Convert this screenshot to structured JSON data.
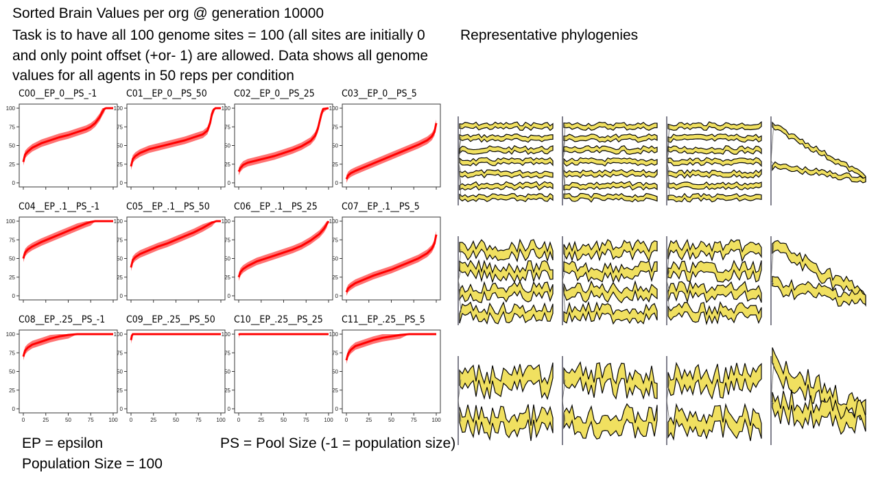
{
  "title_lines": [
    "Sorted Brain Values per org @ generation 10000",
    "Task is to have all 100 genome sites = 100 (all sites are initially 0",
    "and only point offset (+or- 1) are allowed.  Data shows all genome",
    "values for all agents in 50 reps per condition"
  ],
  "phylogeny_title": "Representative phylogenies",
  "notes": {
    "epsilon": "EP = epsilon",
    "population": "Population Size = 100",
    "pool": "PS = Pool Size (-1 = population size)"
  },
  "colors": {
    "series": "#ff0000",
    "axis": "#333333",
    "phylo_fill": "#f0e060",
    "phylo_edge": "#000000"
  },
  "chart_data": [
    {
      "type": "line",
      "title": "C00__EP_0__PS_-1",
      "xlabel": "",
      "ylabel": "",
      "xlim": [
        0,
        100
      ],
      "ylim": [
        0,
        100
      ],
      "grid": false,
      "xticks": [
        0,
        25,
        50,
        75,
        100
      ],
      "yticks": [
        0,
        25,
        50,
        75,
        100
      ],
      "show_xticklabels": false,
      "series": [
        {
          "x": [
            0,
            2,
            5,
            10,
            20,
            30,
            40,
            50,
            60,
            70,
            75,
            80,
            85,
            88,
            90,
            92,
            100
          ],
          "y": [
            28,
            38,
            42,
            47,
            53,
            57,
            61,
            64,
            68,
            72,
            75,
            80,
            88,
            95,
            99,
            100,
            100
          ]
        }
      ]
    },
    {
      "type": "line",
      "title": "C01__EP_0__PS_50",
      "xlabel": "",
      "ylabel": "",
      "xlim": [
        0,
        100
      ],
      "ylim": [
        0,
        100
      ],
      "grid": false,
      "xticks": [
        0,
        25,
        50,
        75,
        100
      ],
      "yticks": [
        0,
        25,
        50,
        75,
        100
      ],
      "show_xticklabels": false,
      "series": [
        {
          "x": [
            0,
            2,
            5,
            10,
            20,
            30,
            40,
            50,
            60,
            70,
            80,
            85,
            88,
            90,
            92,
            94,
            100
          ],
          "y": [
            22,
            32,
            36,
            40,
            45,
            48,
            51,
            54,
            57,
            61,
            65,
            70,
            80,
            92,
            98,
            100,
            100
          ]
        }
      ]
    },
    {
      "type": "line",
      "title": "C02__EP_0__PS_25",
      "xlabel": "",
      "ylabel": "",
      "xlim": [
        0,
        100
      ],
      "ylim": [
        0,
        100
      ],
      "grid": false,
      "xticks": [
        0,
        25,
        50,
        75,
        100
      ],
      "yticks": [
        0,
        25,
        50,
        75,
        100
      ],
      "show_xticklabels": false,
      "series": [
        {
          "x": [
            0,
            2,
            5,
            10,
            20,
            30,
            40,
            50,
            60,
            70,
            80,
            85,
            88,
            90,
            92,
            94,
            100
          ],
          "y": [
            15,
            20,
            24,
            27,
            30,
            33,
            36,
            40,
            44,
            49,
            56,
            63,
            72,
            82,
            92,
            99,
            100
          ]
        }
      ]
    },
    {
      "type": "line",
      "title": "C03__EP_0__PS_5",
      "xlabel": "",
      "ylabel": "",
      "xlim": [
        0,
        100
      ],
      "ylim": [
        0,
        100
      ],
      "grid": false,
      "xticks": [
        0,
        25,
        50,
        75,
        100
      ],
      "yticks": [
        0,
        25,
        50,
        75,
        100
      ],
      "show_xticklabels": false,
      "series": [
        {
          "x": [
            0,
            2,
            5,
            10,
            20,
            30,
            40,
            50,
            60,
            70,
            80,
            90,
            95,
            98,
            100
          ],
          "y": [
            5,
            10,
            13,
            16,
            21,
            26,
            31,
            36,
            41,
            46,
            51,
            57,
            62,
            68,
            80
          ]
        }
      ]
    },
    {
      "type": "line",
      "title": "C04__EP_.1__PS_-1",
      "xlabel": "",
      "ylabel": "",
      "xlim": [
        0,
        100
      ],
      "ylim": [
        0,
        100
      ],
      "grid": false,
      "xticks": [
        0,
        25,
        50,
        75,
        100
      ],
      "yticks": [
        0,
        25,
        50,
        75,
        100
      ],
      "show_xticklabels": false,
      "series": [
        {
          "x": [
            0,
            2,
            5,
            10,
            20,
            30,
            40,
            50,
            60,
            70,
            75,
            80,
            100
          ],
          "y": [
            50,
            58,
            62,
            66,
            72,
            77,
            82,
            87,
            92,
            97,
            99,
            100,
            100
          ]
        }
      ]
    },
    {
      "type": "line",
      "title": "C05__EP_.1__PS_50",
      "xlabel": "",
      "ylabel": "",
      "xlim": [
        0,
        100
      ],
      "ylim": [
        0,
        100
      ],
      "grid": false,
      "xticks": [
        0,
        25,
        50,
        75,
        100
      ],
      "yticks": [
        0,
        25,
        50,
        75,
        100
      ],
      "show_xticklabels": false,
      "series": [
        {
          "x": [
            0,
            2,
            5,
            10,
            20,
            30,
            40,
            50,
            60,
            70,
            80,
            90,
            95,
            100
          ],
          "y": [
            38,
            48,
            52,
            56,
            61,
            66,
            70,
            75,
            80,
            85,
            91,
            98,
            100,
            100
          ]
        }
      ]
    },
    {
      "type": "line",
      "title": "C06__EP_.1__PS_25",
      "xlabel": "",
      "ylabel": "",
      "xlim": [
        0,
        100
      ],
      "ylim": [
        0,
        100
      ],
      "grid": false,
      "xticks": [
        0,
        25,
        50,
        75,
        100
      ],
      "yticks": [
        0,
        25,
        50,
        75,
        100
      ],
      "show_xticklabels": false,
      "series": [
        {
          "x": [
            0,
            2,
            5,
            10,
            20,
            30,
            40,
            50,
            60,
            70,
            80,
            90,
            95,
            98,
            100
          ],
          "y": [
            25,
            32,
            36,
            40,
            46,
            50,
            54,
            58,
            62,
            67,
            74,
            83,
            90,
            96,
            100
          ]
        }
      ]
    },
    {
      "type": "line",
      "title": "C07__EP_.1__PS_5",
      "xlabel": "",
      "ylabel": "",
      "xlim": [
        0,
        100
      ],
      "ylim": [
        0,
        100
      ],
      "grid": false,
      "xticks": [
        0,
        25,
        50,
        75,
        100
      ],
      "yticks": [
        0,
        25,
        50,
        75,
        100
      ],
      "show_xticklabels": false,
      "series": [
        {
          "x": [
            0,
            2,
            5,
            10,
            20,
            30,
            40,
            50,
            60,
            70,
            80,
            90,
            95,
            98,
            100
          ],
          "y": [
            5,
            10,
            13,
            17,
            22,
            27,
            31,
            35,
            40,
            45,
            50,
            57,
            63,
            70,
            82
          ]
        }
      ]
    },
    {
      "type": "line",
      "title": "C08__EP_.25__PS_-1",
      "xlabel": "",
      "ylabel": "",
      "xlim": [
        0,
        100
      ],
      "ylim": [
        0,
        100
      ],
      "grid": false,
      "xticks": [
        0,
        25,
        50,
        75,
        100
      ],
      "yticks": [
        0,
        25,
        50,
        75,
        100
      ],
      "show_xticklabels": true,
      "series": [
        {
          "x": [
            0,
            2,
            5,
            10,
            20,
            30,
            40,
            50,
            60,
            100
          ],
          "y": [
            70,
            78,
            82,
            86,
            90,
            94,
            97,
            99,
            100,
            100
          ]
        }
      ]
    },
    {
      "type": "line",
      "title": "C09__EP_.25__PS_50",
      "xlabel": "",
      "ylabel": "",
      "xlim": [
        0,
        100
      ],
      "ylim": [
        0,
        100
      ],
      "grid": false,
      "xticks": [
        0,
        25,
        50,
        75,
        100
      ],
      "yticks": [
        0,
        25,
        50,
        75,
        100
      ],
      "show_xticklabels": true,
      "series": [
        {
          "x": [
            0,
            1,
            2,
            100
          ],
          "y": [
            92,
            98,
            100,
            100
          ]
        }
      ]
    },
    {
      "type": "line",
      "title": "C10__EP_.25__PS_25",
      "xlabel": "",
      "ylabel": "",
      "xlim": [
        0,
        100
      ],
      "ylim": [
        0,
        100
      ],
      "grid": false,
      "xticks": [
        0,
        25,
        50,
        75,
        100
      ],
      "yticks": [
        0,
        25,
        50,
        75,
        100
      ],
      "show_xticklabels": true,
      "series": [
        {
          "x": [
            0,
            1,
            100
          ],
          "y": [
            99,
            100,
            100
          ]
        }
      ]
    },
    {
      "type": "line",
      "title": "C11__EP_.25__PS_5",
      "xlabel": "",
      "ylabel": "",
      "xlim": [
        0,
        100
      ],
      "ylim": [
        0,
        100
      ],
      "grid": false,
      "xticks": [
        0,
        25,
        50,
        75,
        100
      ],
      "yticks": [
        0,
        25,
        50,
        75,
        100
      ],
      "show_xticklabels": true,
      "series": [
        {
          "x": [
            0,
            2,
            5,
            10,
            20,
            30,
            40,
            50,
            60,
            70,
            100
          ],
          "y": [
            65,
            74,
            79,
            84,
            88,
            92,
            95,
            97,
            99,
            100,
            100
          ]
        }
      ]
    }
  ]
}
